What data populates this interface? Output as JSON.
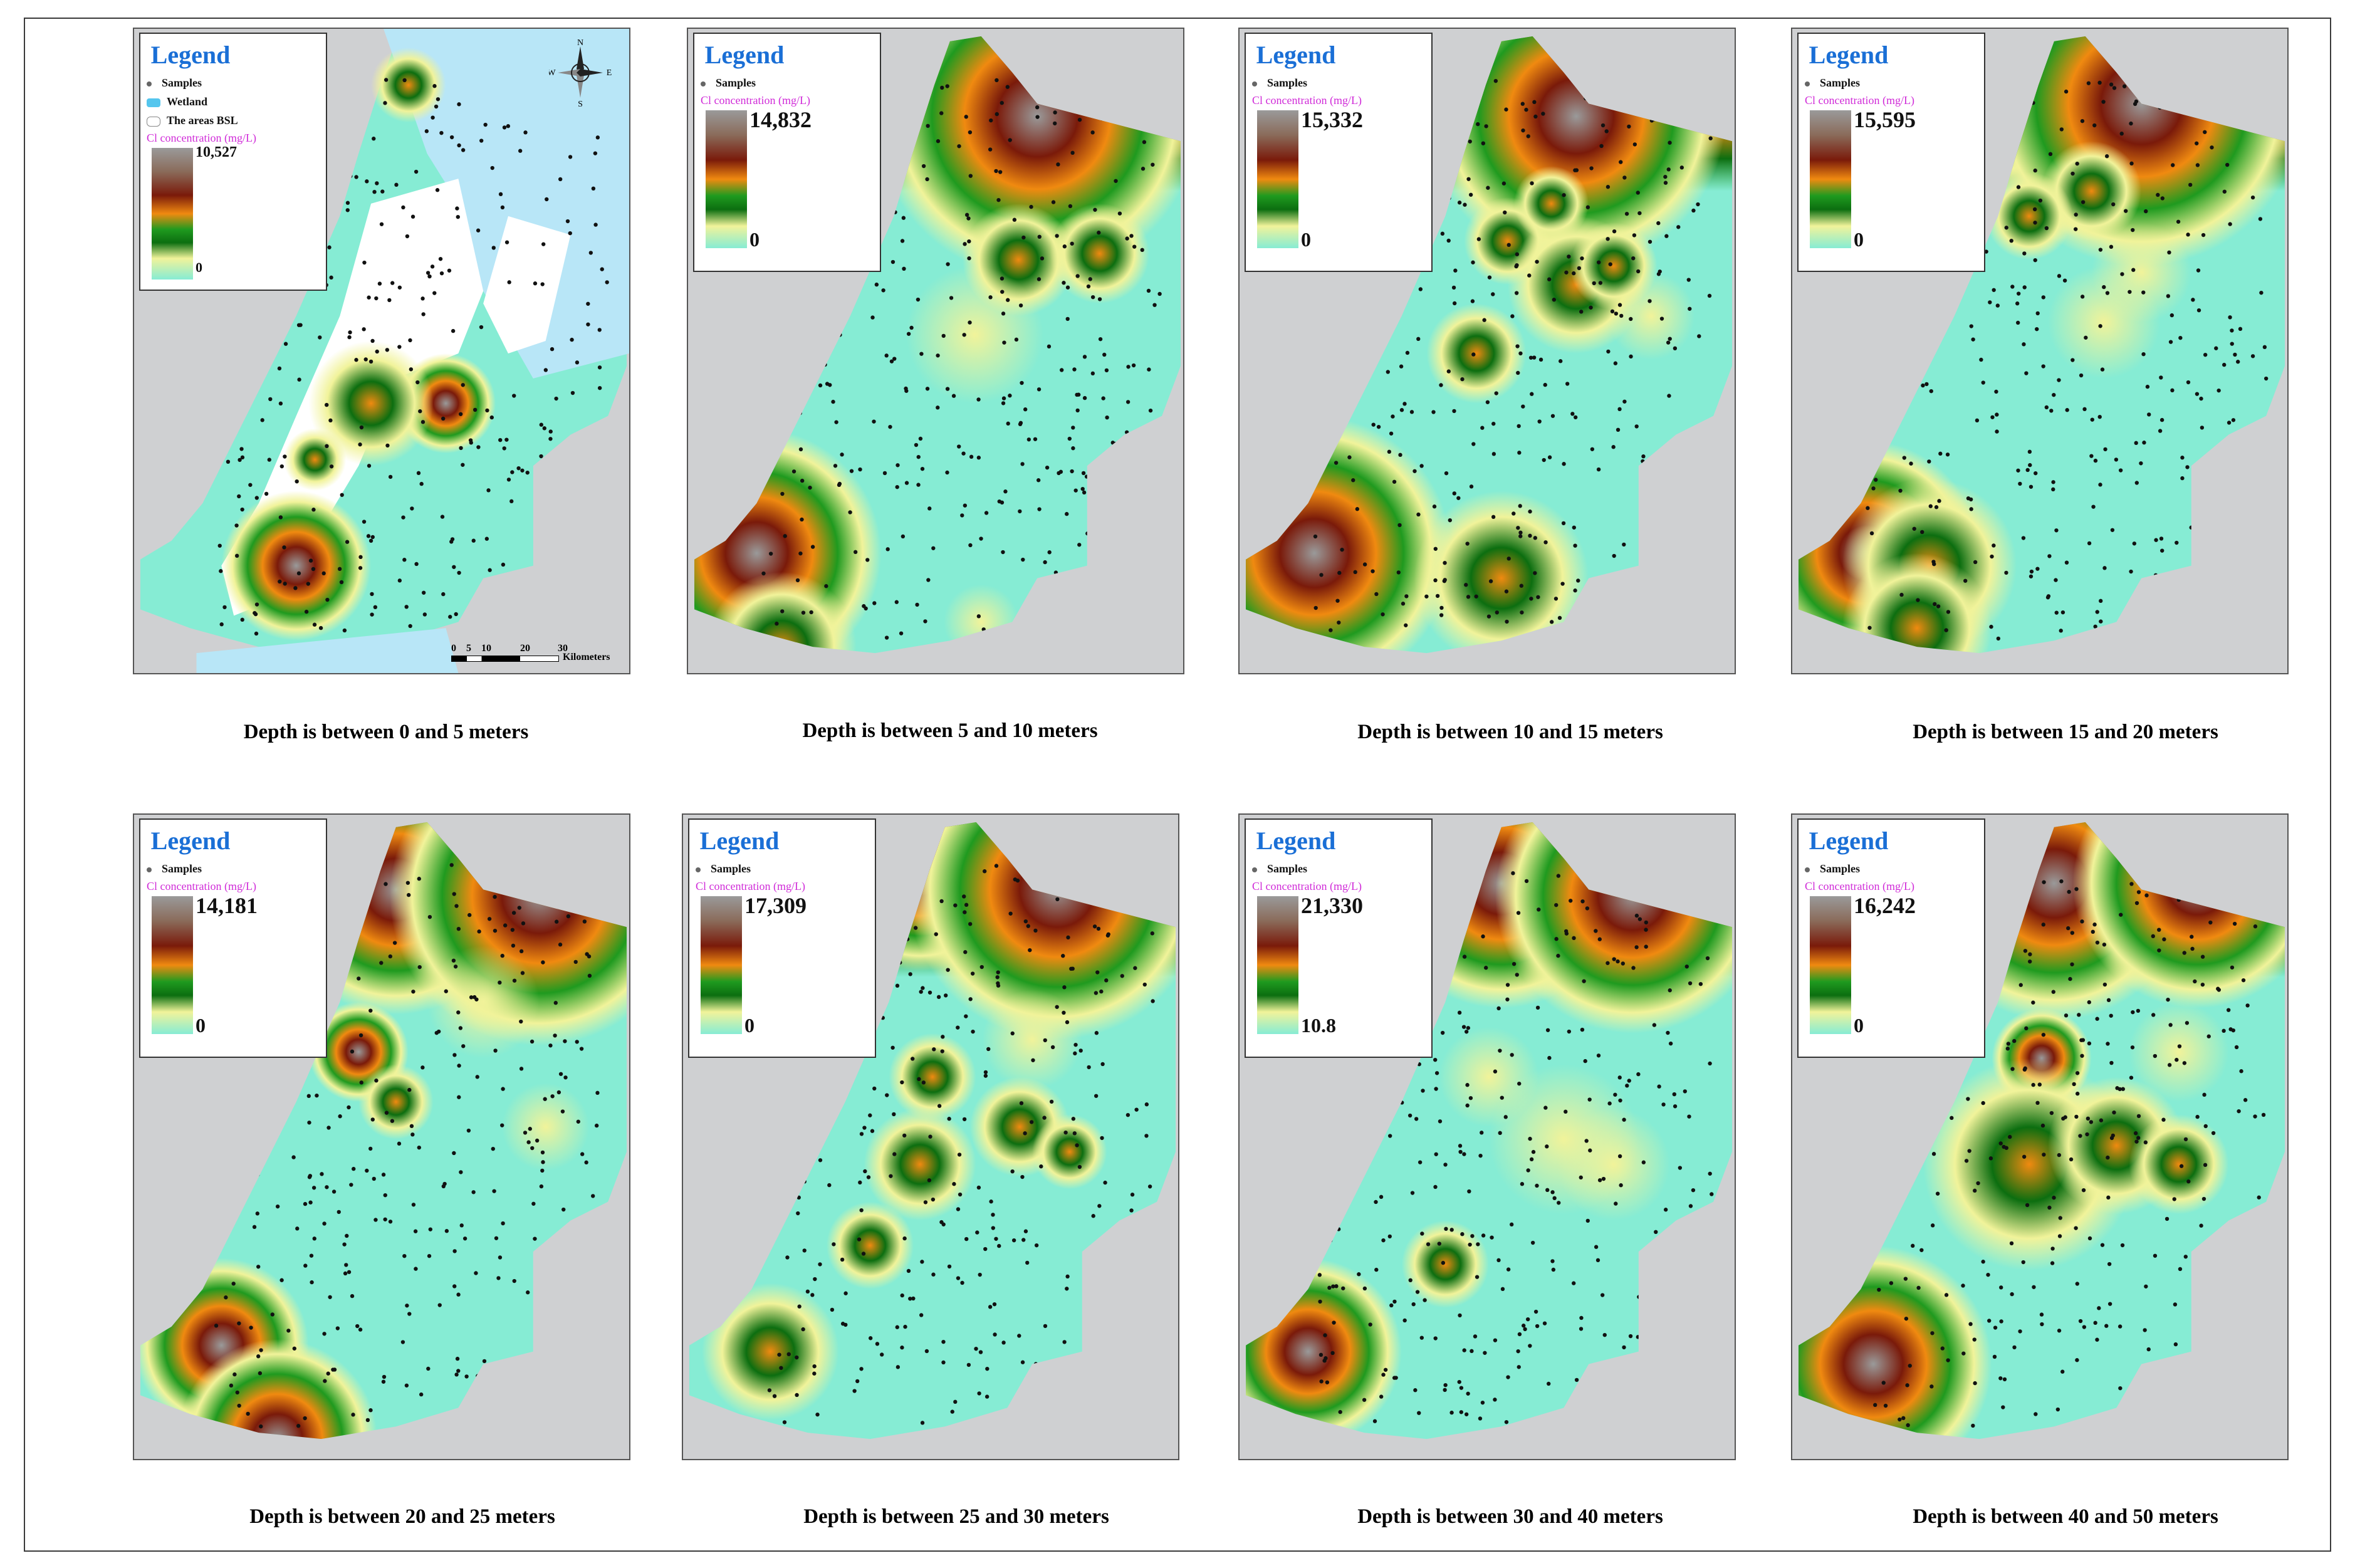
{
  "colors": {
    "water": "#b8e6f7",
    "land": "#cfd0d2",
    "low": "#86ecd4",
    "yellow": "#f1f39a",
    "green": "#1f9a1f",
    "darkgreen": "#0c6e10",
    "orange": "#f08a10",
    "darkred": "#7a1a0a",
    "grey": "#9a9a9a",
    "legend_title": "#1a6fd6",
    "cl_label": "#d02ad8"
  },
  "legend_common": {
    "title": "Legend",
    "samples": "Samples",
    "wetland": "Wetland",
    "areas_bsl": "The areas BSL",
    "cl_label": "Cl concentration  (mg/L)"
  },
  "compass": {
    "n": "N",
    "s": "S",
    "e": "E",
    "w": "W"
  },
  "scale": {
    "ticks": [
      "0",
      "5",
      "10",
      "20",
      "30"
    ],
    "unit": "Kilometers"
  },
  "panels": [
    {
      "caption": "Depth is between 0 and 5 meters",
      "max": "10,527",
      "min": "0"
    },
    {
      "caption": "Depth is between 5 and 10 meters",
      "max": "14,832",
      "min": "0"
    },
    {
      "caption": "Depth is between 10 and 15 meters",
      "max": "15,332",
      "min": "0"
    },
    {
      "caption": "Depth is between 15 and 20 meters",
      "max": "15,595",
      "min": "0"
    },
    {
      "caption": "Depth is between 20 and 25 meters",
      "max": "14,181",
      "min": "0"
    },
    {
      "caption": "Depth is between 25 and 30 meters",
      "max": "17,309",
      "min": "0"
    },
    {
      "caption": "Depth is between 30 and 40 meters",
      "max": "21,330",
      "min": "10.8"
    },
    {
      "caption": "Depth is between 40 and 50 meters",
      "max": "16,242",
      "min": "0"
    }
  ]
}
